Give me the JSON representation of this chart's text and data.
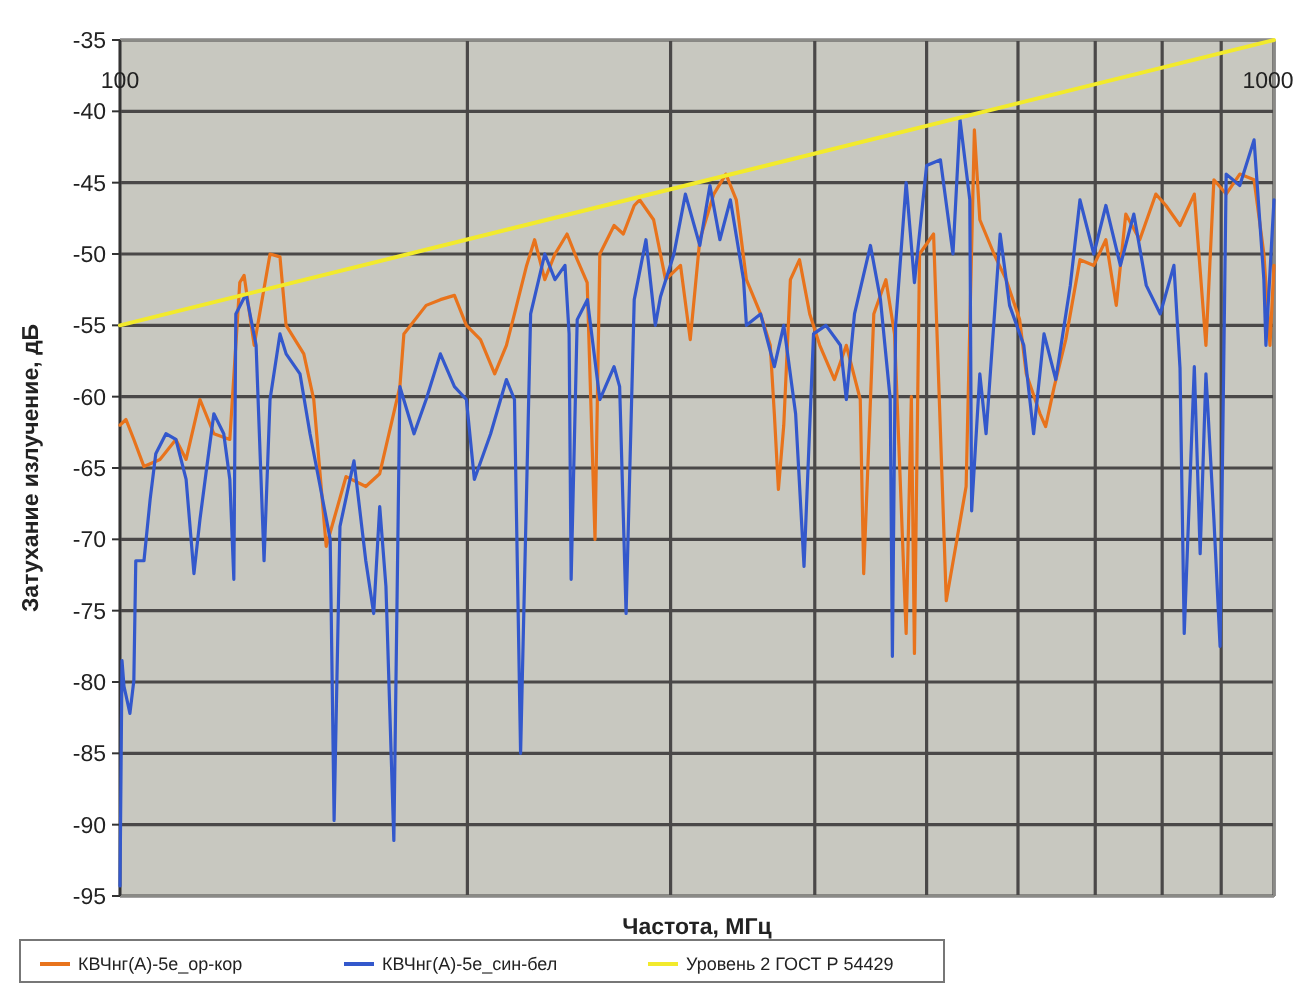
{
  "chart_data": {
    "type": "line",
    "xlabel": "Частота, МГц",
    "ylabel": "Затухание излучение, дБ",
    "log": "x",
    "xlim": [
      100,
      1000
    ],
    "ylim": [
      -95,
      -35
    ],
    "xticks": [
      100,
      {
        "value": 200,
        "label": null
      },
      {
        "value": 300,
        "label": null
      },
      {
        "value": 400,
        "label": null
      },
      {
        "value": 500,
        "label": null
      },
      {
        "value": 600,
        "label": null
      },
      {
        "value": 700,
        "label": null
      },
      {
        "value": 800,
        "label": null
      },
      {
        "value": 900,
        "label": null
      },
      1000
    ],
    "yticks": [
      -95,
      -90,
      -85,
      -80,
      -75,
      -70,
      -65,
      -60,
      -55,
      -50,
      -45,
      -40,
      -35
    ],
    "grid": true,
    "legend": "bottom",
    "line_style": "solid",
    "series": [
      {
        "name": "КВЧнг(А)-5е_ор-кор",
        "color": "#e8731c",
        "x": [
          100,
          101.2,
          102.8,
          104.9,
          108.3,
          111.8,
          114.1,
          117.3,
          120.6,
          124.5,
          127,
          128.1,
          130.7,
          134.9,
          137.6,
          139.3,
          144.3,
          147.2,
          150.9,
          157,
          163.3,
          167.9,
          174.8,
          176.2,
          184.2,
          189.5,
          194.9,
          199.6,
          205.3,
          211.2,
          216.2,
          219.7,
          225.1,
          228.7,
          233.4,
          238.2,
          244,
          249,
          254,
          258,
          260.5,
          268,
          273,
          279,
          282,
          290,
          297,
          306,
          312,
          318,
          327,
          335,
          342,
          349,
          359,
          366,
          369,
          372,
          376,
          381,
          388,
          396,
          404,
          416,
          426,
          438,
          441,
          450,
          461,
          469,
          480,
          485,
          488,
          493,
          507,
          520,
          541,
          550,
          556,
          572,
          586,
          602,
          610,
          627,
          634,
          645,
          660,
          679,
          698,
          715,
          730,
          744,
          765,
          790,
          806,
          829,
          853,
          873,
          887,
          909,
          934,
          961,
          980,
          992,
          1000
        ],
        "values": [
          -62,
          -61.6,
          -63,
          -64.9,
          -64.4,
          -63,
          -64.4,
          -60.2,
          -62.6,
          -63,
          -52,
          -51.5,
          -56.4,
          -50,
          -50.2,
          -55,
          -57,
          -60.2,
          -70.5,
          -65.6,
          -66.3,
          -65.4,
          -59.3,
          -55.6,
          -53.6,
          -53.2,
          -52.9,
          -55,
          -56,
          -58.4,
          -56.4,
          -54.2,
          -50.8,
          -49,
          -51.8,
          -50,
          -48.6,
          -50.4,
          -52,
          -70,
          -50,
          -48,
          -48.6,
          -46.6,
          -46.2,
          -47.6,
          -51.8,
          -50.8,
          -56,
          -49,
          -45.8,
          -44.4,
          -46.2,
          -51.8,
          -54.2,
          -56.4,
          -61.2,
          -66.5,
          -62,
          -51.8,
          -50.4,
          -54.2,
          -56.4,
          -58.8,
          -56.4,
          -60.2,
          -72.4,
          -54.2,
          -51.8,
          -55.6,
          -76.6,
          -60,
          -78,
          -50,
          -48.6,
          -74.3,
          -66.3,
          -41.3,
          -47.6,
          -50,
          -51.8,
          -54.6,
          -58.4,
          -61.2,
          -62.1,
          -59.3,
          -56,
          -50.4,
          -50.8,
          -49,
          -53.6,
          -47.2,
          -49,
          -45.8,
          -46.6,
          -48,
          -45.8,
          -56.4,
          -44.8,
          -45.8,
          -44.4,
          -44.8,
          -50,
          -56.4,
          -50.8
        ]
      },
      {
        "name": "КВЧнг(А)-5е_син-бел",
        "color": "#3358cc",
        "x": [
          100,
          100.4,
          100.8,
          102,
          102.8,
          103.2,
          104.9,
          106.2,
          107.4,
          109.6,
          111.8,
          114.1,
          115.9,
          117.3,
          118.7,
          120.6,
          123,
          124.5,
          125.5,
          126,
          128.6,
          131.2,
          133.3,
          134.9,
          137.6,
          139.3,
          143.2,
          146.1,
          149.1,
          152.1,
          153.3,
          155.1,
          159.5,
          163.3,
          165.9,
          167.9,
          170,
          172.7,
          174.8,
          179.8,
          184.2,
          189.5,
          194.9,
          199.6,
          202.8,
          209.5,
          216.2,
          219.7,
          222.4,
          226.9,
          233.4,
          238.2,
          243,
          245,
          246,
          249,
          254.1,
          260.5,
          268,
          271,
          274.5,
          279,
          285.6,
          291,
          294,
          302,
          309,
          318,
          324.5,
          331,
          338,
          347,
          349,
          359,
          369,
          376,
          385,
          391.5,
          399,
          409,
          421,
          426,
          433,
          447,
          456,
          465,
          467,
          470,
          480,
          488,
          500,
          514,
          527,
          534.5,
          545,
          547,
          556,
          563,
          579,
          590,
          607,
          619,
          632,
          647,
          666,
          679,
          698,
          715,
          736,
          756,
          775,
          797,
          819,
          829,
          836,
          853,
          863,
          873,
          887,
          898,
          909,
          934,
          961,
          980,
          984,
          1000
        ],
        "values": [
          -94.3,
          -78.5,
          -80.3,
          -82.2,
          -79.9,
          -71.5,
          -71.5,
          -67.2,
          -64,
          -62.6,
          -63,
          -65.8,
          -72.4,
          -68.6,
          -65.4,
          -61.2,
          -62.6,
          -65.8,
          -72.8,
          -54.2,
          -52.8,
          -56.4,
          -71.5,
          -60.2,
          -55.6,
          -57,
          -58.4,
          -62.6,
          -66.3,
          -70,
          -89.7,
          -69.1,
          -64.5,
          -71.5,
          -75.2,
          -67.7,
          -73.3,
          -91.1,
          -59.3,
          -62.6,
          -60.2,
          -57,
          -59.3,
          -60.2,
          -65.8,
          -62.6,
          -58.8,
          -60.2,
          -85,
          -54.2,
          -50,
          -51.8,
          -50.8,
          -55.6,
          -72.8,
          -54.6,
          -53.2,
          -60.2,
          -57.9,
          -59.3,
          -75.2,
          -53.2,
          -49,
          -55,
          -53,
          -50,
          -45.8,
          -49.4,
          -45.2,
          -49,
          -46.2,
          -51.8,
          -55,
          -54.2,
          -57.9,
          -55,
          -61.2,
          -71.9,
          -55.6,
          -55,
          -56.4,
          -60.2,
          -54.2,
          -49.4,
          -53.2,
          -60.2,
          -78.2,
          -55,
          -45,
          -52,
          -43.8,
          -43.4,
          -50,
          -40.6,
          -46.2,
          -68,
          -58.4,
          -62.6,
          -48.6,
          -53.6,
          -56.4,
          -62.6,
          -55.6,
          -58.8,
          -52.2,
          -46.2,
          -50,
          -46.6,
          -50.8,
          -47.2,
          -52.2,
          -54.2,
          -50.8,
          -58,
          -76.6,
          -57.9,
          -71,
          -58.4,
          -68.6,
          -77.5,
          -44.4,
          -45.2,
          -42,
          -51.8,
          -56.4,
          -46.2
        ]
      },
      {
        "name": "Уровень 2 ГОСТ Р 54429",
        "color": "#f2ea2c",
        "x": [
          100,
          1000
        ],
        "values": [
          -55,
          -35
        ]
      }
    ]
  }
}
